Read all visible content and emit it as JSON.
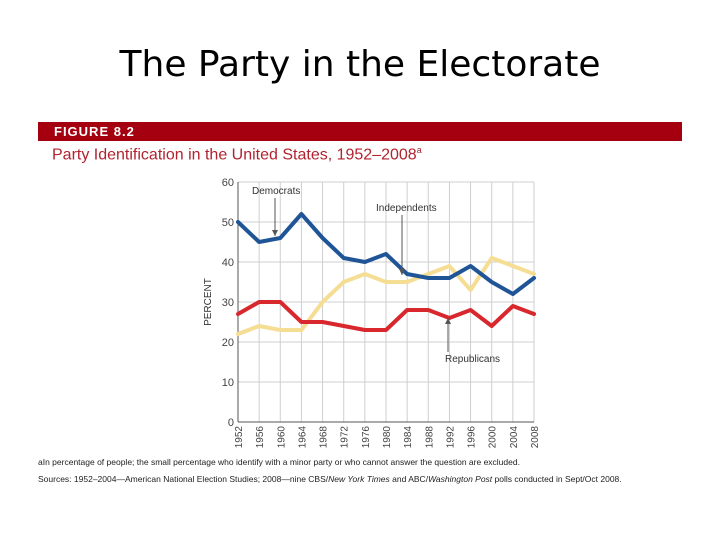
{
  "slide": {
    "title": "The Party in the Electorate"
  },
  "figure": {
    "label": "FIGURE 8.2",
    "caption": "Party Identification in the United States, 1952–2008",
    "caption_marker": "a",
    "footnote": "aIn percentage of people; the small percentage who identify with a minor party or who cannot answer the question are excluded.",
    "sources_prefix": "Sources: 1952–2004—American National Election Studies; 2008—nine CBS/",
    "sources_pub1": "New York Times",
    "sources_mid": " and ABC/",
    "sources_pub2": "Washington Post",
    "sources_suffix": " polls conducted in Sept/Oct 2008."
  },
  "chart_data": {
    "type": "line",
    "title": "Party Identification in the United States, 1952–2008",
    "xlabel": "",
    "ylabel": "PERCENT",
    "ylim": [
      0,
      60
    ],
    "yticks": [
      0,
      10,
      20,
      30,
      40,
      50,
      60
    ],
    "grid": true,
    "x": [
      1952,
      1956,
      1960,
      1964,
      1968,
      1972,
      1976,
      1980,
      1984,
      1988,
      1992,
      1996,
      2000,
      2004,
      2008
    ],
    "series": [
      {
        "name": "Democrats",
        "color": "#1f5596",
        "values": [
          50,
          45,
          46,
          52,
          46,
          41,
          40,
          42,
          37,
          36,
          36,
          39,
          35,
          32,
          36
        ]
      },
      {
        "name": "Independents",
        "color": "#f5de94",
        "values": [
          22,
          24,
          23,
          23,
          30,
          35,
          37,
          35,
          35,
          37,
          39,
          33,
          41,
          39,
          37
        ]
      },
      {
        "name": "Republicans",
        "color": "#d9272e",
        "values": [
          27,
          30,
          30,
          25,
          25,
          24,
          23,
          23,
          28,
          28,
          26,
          28,
          24,
          29,
          27
        ]
      }
    ],
    "annotations": [
      "Democrats",
      "Independents",
      "Republicans"
    ]
  }
}
